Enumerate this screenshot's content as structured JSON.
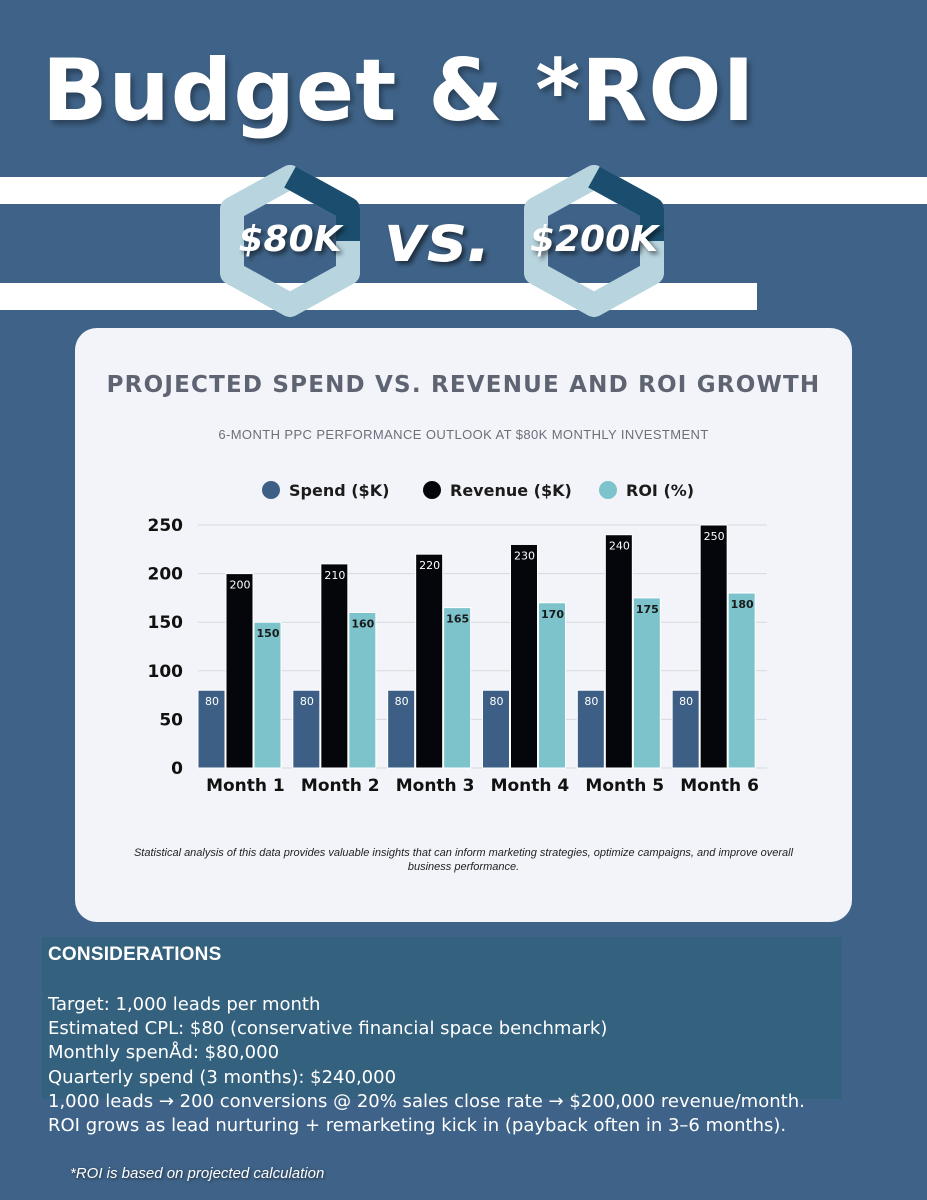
{
  "header": {
    "title": "Budget & *ROI",
    "spend_label": "$80K",
    "vs_label": "vs.",
    "revenue_label": "$200K"
  },
  "colors": {
    "background": "#3f6388",
    "spend": "#3e5f85",
    "revenue": "#05060c",
    "roi": "#7cc3cc",
    "hex_ring": "#b8d5df",
    "hex_accent": "#1b4e6e"
  },
  "chart_data": {
    "type": "bar",
    "title": "PROJECTED SPEND VS. REVENUE AND ROI GROWTH",
    "subtitle": "6-MONTH PPC PERFORMANCE OUTLOOK AT $80K MONTHLY INVESTMENT",
    "categories": [
      "Month 1",
      "Month 2",
      "Month 3",
      "Month 4",
      "Month 5",
      "Month 6"
    ],
    "series": [
      {
        "name": "Spend ($K)",
        "values": [
          80,
          80,
          80,
          80,
          80,
          80
        ],
        "color": "#3e5f85"
      },
      {
        "name": "Revenue ($K)",
        "values": [
          200,
          210,
          220,
          230,
          240,
          250
        ],
        "color": "#05060c"
      },
      {
        "name": "ROI (%)",
        "values": [
          150,
          160,
          165,
          170,
          175,
          180
        ],
        "color": "#7cc3cc"
      }
    ],
    "y_ticks": [
      0,
      50,
      100,
      150,
      200,
      250
    ],
    "ylim": [
      0,
      250
    ],
    "grid": true,
    "legend_position": "top-center",
    "footnote": "Statistical analysis of this data provides valuable insights that can inform marketing strategies, optimize campaigns, and improve overall business performance."
  },
  "considerations": {
    "heading": "CONSIDERATIONS",
    "lines": [
      "Target: 1,000 leads per month",
      "Estimated CPL: $80 (conservative financial space benchmark)",
      "Monthly spenÅd: $80,000",
      "Quarterly spend (3 months): $240,000",
      "1,000 leads → 200 conversions @ 20% sales close rate → $200,000 revenue/month.",
      "ROI grows as lead nurturing + remarketing kick in (payback often in 3–6 months)."
    ]
  },
  "footnote": "*ROI is based on projected calculation"
}
